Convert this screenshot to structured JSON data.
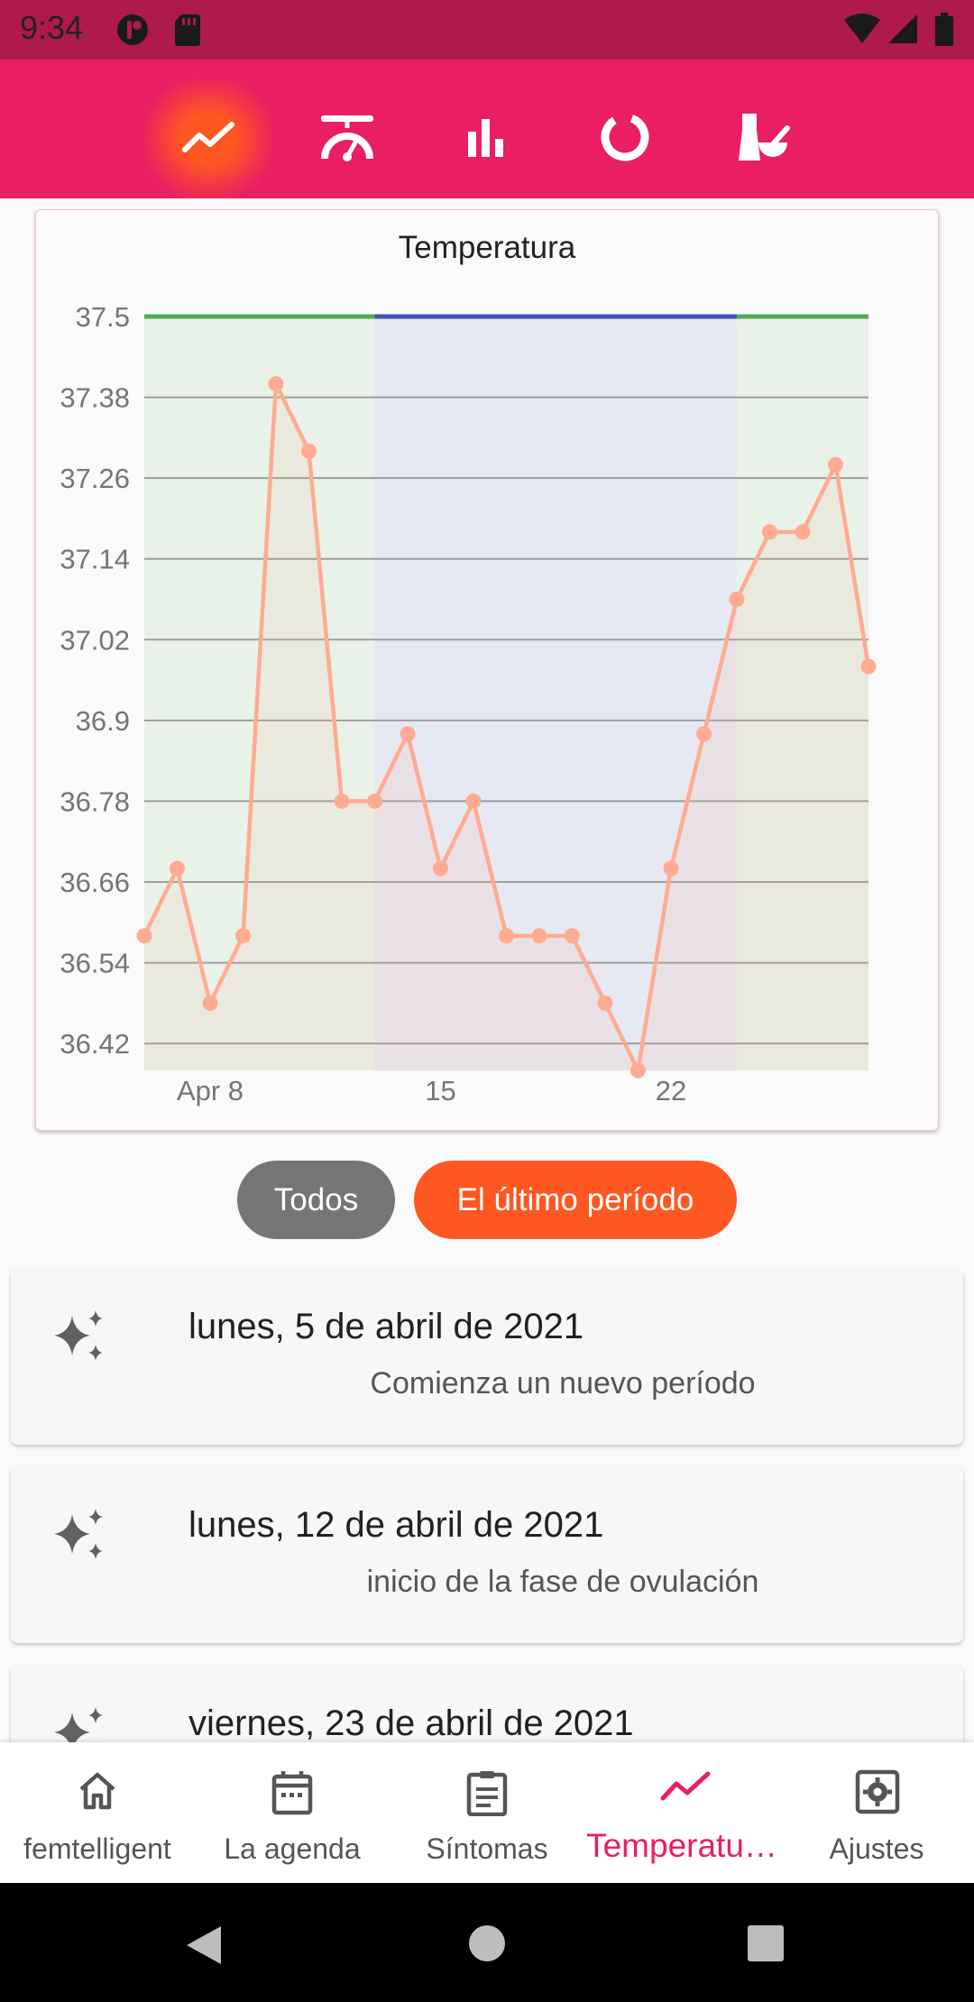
{
  "status_bar": {
    "time": "9:34",
    "icons": [
      "app-notification-icon",
      "sd-card-icon",
      "wifi-icon",
      "cellular-signal-icon",
      "battery-icon"
    ]
  },
  "top_tabs": [
    {
      "icon": "trend-line-icon",
      "active": true
    },
    {
      "icon": "scale-gauge-icon",
      "active": false
    },
    {
      "icon": "bar-chart-icon",
      "active": false
    },
    {
      "icon": "ring-chart-icon",
      "active": false
    },
    {
      "icon": "mortar-pestle-icon",
      "active": false
    }
  ],
  "colors": {
    "primary": "#e91e63",
    "status_bar": "#ad1a4b",
    "accent": "#ff5722",
    "line": "#ffab91",
    "phase_follicular": "#4caf50",
    "phase_ovulation": "#3f51b5"
  },
  "chart_data": {
    "type": "line",
    "title": "Temperatura",
    "x_tick_labels": [
      {
        "day": 8,
        "label": "Apr 8"
      },
      {
        "day": 15,
        "label": "15"
      },
      {
        "day": 22,
        "label": "22"
      }
    ],
    "y_ticks": [
      37.5,
      37.38,
      37.26,
      37.14,
      37.02,
      36.9,
      36.78,
      36.66,
      36.54,
      36.42
    ],
    "ylim": [
      36.38,
      37.5
    ],
    "xlim_days": [
      6,
      28
    ],
    "phases": [
      {
        "start_day": 6,
        "end_day": 13,
        "color": "#4caf50"
      },
      {
        "start_day": 13,
        "end_day": 24,
        "color": "#3f51b5"
      },
      {
        "start_day": 24,
        "end_day": 28,
        "color": "#4caf50"
      }
    ],
    "series": [
      {
        "days": [
          6,
          7,
          8,
          9,
          10,
          11,
          12,
          13,
          14,
          15,
          16,
          17,
          18,
          19,
          20,
          21,
          22,
          23,
          24,
          25,
          26,
          27,
          28
        ],
        "values": [
          36.58,
          36.68,
          36.48,
          36.58,
          37.4,
          37.3,
          36.78,
          36.78,
          36.88,
          36.68,
          36.78,
          36.58,
          36.58,
          36.58,
          36.48,
          36.38,
          36.68,
          36.88,
          37.08,
          37.18,
          37.18,
          37.28,
          36.98
        ]
      }
    ],
    "grid": true
  },
  "filters": {
    "all_label": "Todos",
    "last_period_label": "El último período"
  },
  "events": [
    {
      "date": "lunes, 5 de abril de 2021",
      "description": "Comienza un nuevo período"
    },
    {
      "date": "lunes, 12 de abril de 2021",
      "description": "inicio de la fase de ovulación"
    },
    {
      "date": "viernes, 23 de abril de 2021",
      "description": ""
    }
  ],
  "bottom_nav": [
    {
      "label": "femtelligent",
      "icon": "home-icon",
      "active": false
    },
    {
      "label": "La agenda",
      "icon": "calendar-icon",
      "active": false
    },
    {
      "label": "Síntomas",
      "icon": "clipboard-icon",
      "active": false
    },
    {
      "label": "Temperatu…",
      "icon": "trend-line-icon",
      "active": true
    },
    {
      "label": "Ajustes",
      "icon": "settings-icon",
      "active": false
    }
  ]
}
